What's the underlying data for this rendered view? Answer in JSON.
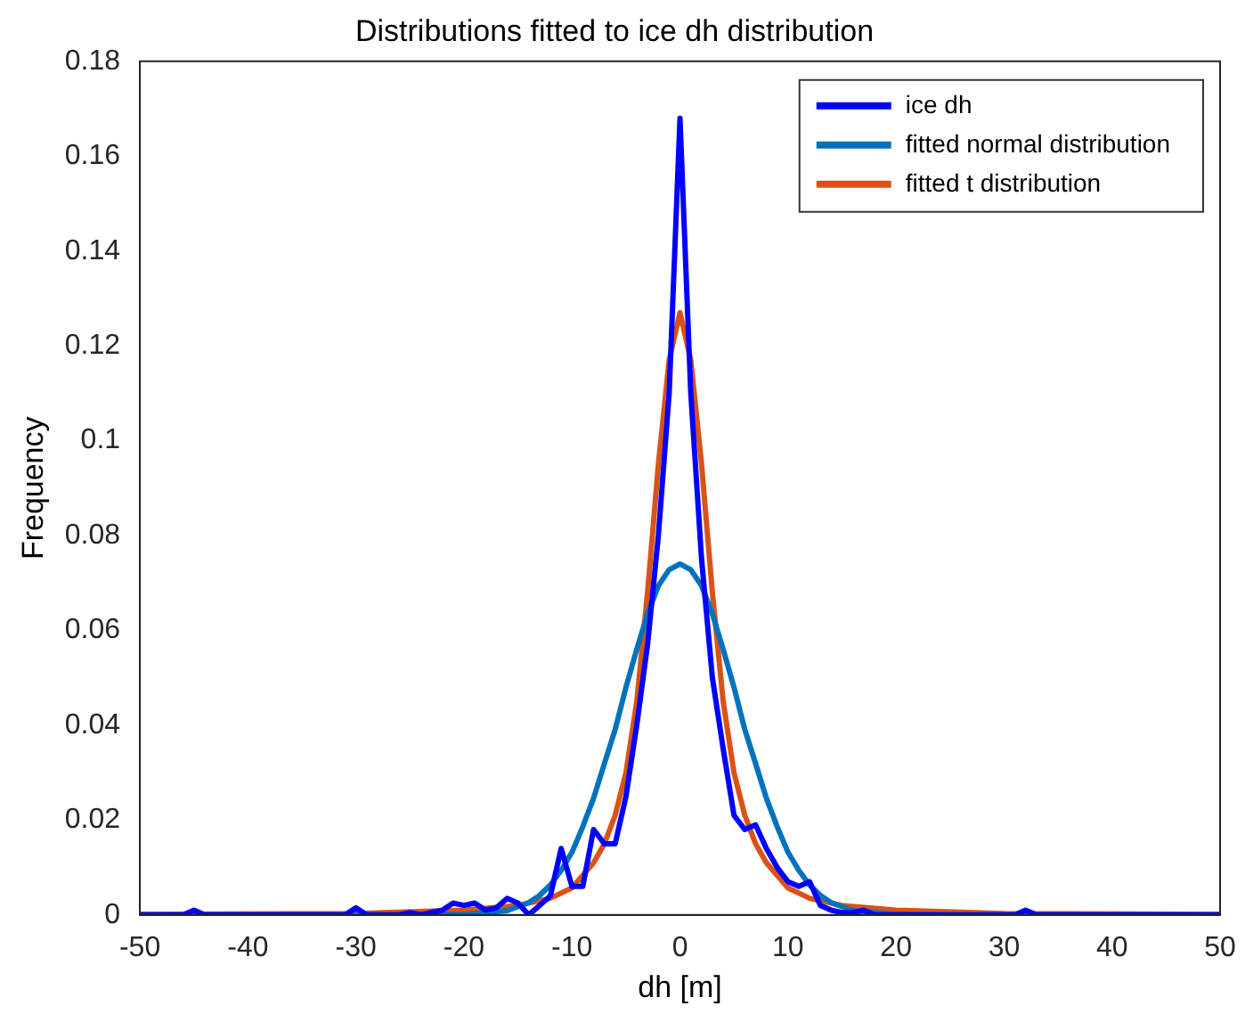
{
  "chart_data": {
    "type": "line",
    "title": "Distributions fitted to ice dh distribution",
    "xlabel": "dh [m]",
    "ylabel": "Frequency",
    "xlim": [
      -50,
      50
    ],
    "xticks": [
      -50,
      -40,
      -30,
      -20,
      -10,
      0,
      10,
      20,
      30,
      40,
      50
    ],
    "ylim": [
      0,
      0.18
    ],
    "yticks": [
      0,
      0.02,
      0.04,
      0.06,
      0.08,
      0.1,
      0.12,
      0.14,
      0.16,
      0.18
    ],
    "grid": false,
    "legend": "top right",
    "marker": "none",
    "line_style": "solid",
    "series": [
      {
        "name": "ice dh",
        "color": "#0000ff",
        "x": [
          -50,
          -46,
          -45,
          -44,
          -31,
          -30,
          -29,
          -26,
          -25,
          -24,
          -22,
          -21,
          -20,
          -19,
          -18,
          -17,
          -16,
          -15,
          -14,
          -13,
          -12,
          -11,
          -10,
          -9,
          -8,
          -7,
          -6,
          -5,
          -4,
          -3,
          -2,
          -1,
          0,
          1,
          2,
          3,
          4,
          5,
          6,
          7,
          8,
          9,
          10,
          11,
          12,
          13,
          14,
          15,
          16,
          17,
          18,
          31,
          32,
          33,
          50
        ],
        "values": [
          0,
          0,
          0.001,
          0,
          0,
          0.0015,
          0,
          0,
          0.0005,
          0,
          0.001,
          0.0025,
          0.002,
          0.0025,
          0.001,
          0.0015,
          0.0035,
          0.0025,
          0,
          0.002,
          0.004,
          0.014,
          0.006,
          0.006,
          0.018,
          0.015,
          0.015,
          0.025,
          0.04,
          0.057,
          0.08,
          0.11,
          0.168,
          0.11,
          0.075,
          0.05,
          0.035,
          0.021,
          0.018,
          0.019,
          0.014,
          0.01,
          0.007,
          0.006,
          0.007,
          0.002,
          0.001,
          0.0005,
          0.0005,
          0.001,
          0,
          0,
          0.001,
          0,
          0
        ]
      },
      {
        "name": "fitted normal distribution",
        "color": "#0072bd",
        "x": [
          -50,
          -30,
          -20,
          -16,
          -14,
          -13,
          -12,
          -11,
          -10,
          -9,
          -8,
          -7,
          -6,
          -5,
          -4,
          -3,
          -2,
          -1,
          0,
          1,
          2,
          3,
          4,
          5,
          6,
          7,
          8,
          9,
          10,
          11,
          12,
          13,
          14,
          16,
          20,
          30,
          50
        ],
        "values": [
          0,
          0,
          0.0001,
          0.0009,
          0.0026,
          0.0041,
          0.0063,
          0.0094,
          0.0132,
          0.0186,
          0.0246,
          0.0319,
          0.0391,
          0.048,
          0.056,
          0.0635,
          0.0694,
          0.0728,
          0.074,
          0.0728,
          0.0694,
          0.0635,
          0.056,
          0.048,
          0.0391,
          0.0319,
          0.0246,
          0.0186,
          0.0132,
          0.0094,
          0.0063,
          0.0041,
          0.0026,
          0.0009,
          0.0001,
          0,
          0
        ]
      },
      {
        "name": "fitted t distribution",
        "color": "#d95319",
        "x": [
          -50,
          -30,
          -20,
          -15,
          -12,
          -10,
          -8,
          -7,
          -6,
          -5,
          -4,
          -3,
          -2,
          -1,
          0,
          1,
          2,
          3,
          4,
          5,
          6,
          7,
          8,
          10,
          12,
          15,
          20,
          30,
          50
        ],
        "values": [
          0.0001,
          0.0003,
          0.001,
          0.002,
          0.0035,
          0.0057,
          0.011,
          0.015,
          0.021,
          0.03,
          0.045,
          0.068,
          0.095,
          0.117,
          0.127,
          0.117,
          0.095,
          0.068,
          0.045,
          0.03,
          0.021,
          0.015,
          0.011,
          0.0057,
          0.0035,
          0.002,
          0.001,
          0.0003,
          0.0001
        ]
      }
    ]
  }
}
